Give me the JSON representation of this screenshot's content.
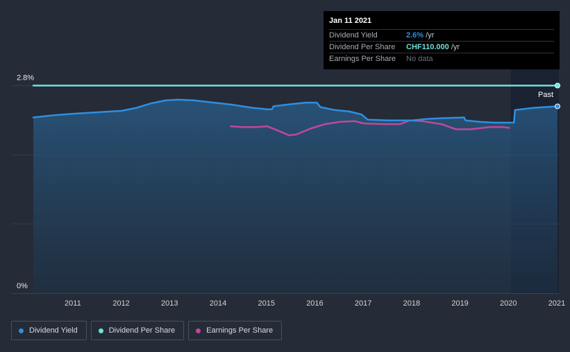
{
  "chart_data": {
    "type": "line",
    "title": "",
    "y_axis": {
      "labels": [
        "2.8%",
        "0%"
      ],
      "ylim": [
        0,
        2.8
      ],
      "unit": "%"
    },
    "x_axis": {
      "range": [
        2010.17,
        2021.0
      ],
      "ticks": [
        {
          "value": 2011,
          "label": "2011"
        },
        {
          "value": 2012,
          "label": "2012"
        },
        {
          "value": 2013,
          "label": "2013"
        },
        {
          "value": 2014,
          "label": "2014"
        },
        {
          "value": 2015,
          "label": "2015"
        },
        {
          "value": 2016,
          "label": "2016"
        },
        {
          "value": 2017,
          "label": "2017"
        },
        {
          "value": 2018,
          "label": "2018"
        },
        {
          "value": 2019,
          "label": "2019"
        },
        {
          "value": 2020,
          "label": "2020"
        },
        {
          "value": 2021,
          "label": "2021"
        }
      ]
    },
    "past_region": {
      "start": 2020.04,
      "label": "Past"
    },
    "series": [
      {
        "name": "Dividend Yield",
        "color": "#2e8fe0",
        "points": [
          [
            2010.17,
            2.37
          ],
          [
            2010.6,
            2.4
          ],
          [
            2011.0,
            2.42
          ],
          [
            2011.5,
            2.44
          ],
          [
            2012.0,
            2.46
          ],
          [
            2012.3,
            2.5
          ],
          [
            2012.6,
            2.56
          ],
          [
            2012.9,
            2.6
          ],
          [
            2013.15,
            2.61
          ],
          [
            2013.5,
            2.6
          ],
          [
            2013.9,
            2.57
          ],
          [
            2014.3,
            2.54
          ],
          [
            2014.7,
            2.5
          ],
          [
            2015.0,
            2.48
          ],
          [
            2015.1,
            2.48
          ],
          [
            2015.13,
            2.52
          ],
          [
            2015.5,
            2.55
          ],
          [
            2015.8,
            2.57
          ],
          [
            2016.03,
            2.57
          ],
          [
            2016.1,
            2.51
          ],
          [
            2016.4,
            2.47
          ],
          [
            2016.7,
            2.45
          ],
          [
            2016.95,
            2.41
          ],
          [
            2017.08,
            2.34
          ],
          [
            2017.5,
            2.33
          ],
          [
            2018.0,
            2.33
          ],
          [
            2018.3,
            2.35
          ],
          [
            2018.6,
            2.36
          ],
          [
            2019.07,
            2.37
          ],
          [
            2019.1,
            2.33
          ],
          [
            2019.4,
            2.31
          ],
          [
            2019.7,
            2.3
          ],
          [
            2020.1,
            2.3
          ],
          [
            2020.12,
            2.47
          ],
          [
            2020.5,
            2.5
          ],
          [
            2021.0,
            2.52
          ]
        ]
      },
      {
        "name": "Dividend Per Share",
        "color": "#6fe3dd",
        "points": [
          [
            2010.17,
            2.8
          ],
          [
            2021.0,
            2.8
          ]
        ]
      },
      {
        "name": "Earnings Per Share",
        "color": "#c2479b",
        "points": [
          [
            2014.25,
            2.25
          ],
          [
            2014.5,
            2.24
          ],
          [
            2014.8,
            2.24
          ],
          [
            2015.0,
            2.25
          ],
          [
            2015.2,
            2.2
          ],
          [
            2015.45,
            2.13
          ],
          [
            2015.6,
            2.14
          ],
          [
            2015.9,
            2.22
          ],
          [
            2016.2,
            2.28
          ],
          [
            2016.5,
            2.31
          ],
          [
            2016.8,
            2.32
          ],
          [
            2017.0,
            2.29
          ],
          [
            2017.4,
            2.28
          ],
          [
            2017.75,
            2.28
          ],
          [
            2017.95,
            2.33
          ],
          [
            2018.2,
            2.32
          ],
          [
            2018.6,
            2.28
          ],
          [
            2018.9,
            2.21
          ],
          [
            2019.2,
            2.21
          ],
          [
            2019.6,
            2.24
          ],
          [
            2019.85,
            2.24
          ],
          [
            2020.0,
            2.23
          ]
        ]
      }
    ],
    "legend": [
      "Dividend Yield",
      "Dividend Per Share",
      "Earnings Per Share"
    ]
  },
  "tooltip": {
    "date": "Jan 11 2021",
    "rows": [
      {
        "label": "Dividend Yield",
        "value": "2.6%",
        "suffix": " /yr"
      },
      {
        "label": "Dividend Per Share",
        "value": "CHF110.000",
        "suffix": " /yr"
      },
      {
        "label": "Earnings Per Share",
        "value": "No data",
        "suffix": ""
      }
    ]
  },
  "legend": {
    "items": [
      {
        "label": "Dividend Yield",
        "color": "#2e8fe0"
      },
      {
        "label": "Dividend Per Share",
        "color": "#6fe3dd"
      },
      {
        "label": "Earnings Per Share",
        "color": "#c2479b"
      }
    ]
  }
}
